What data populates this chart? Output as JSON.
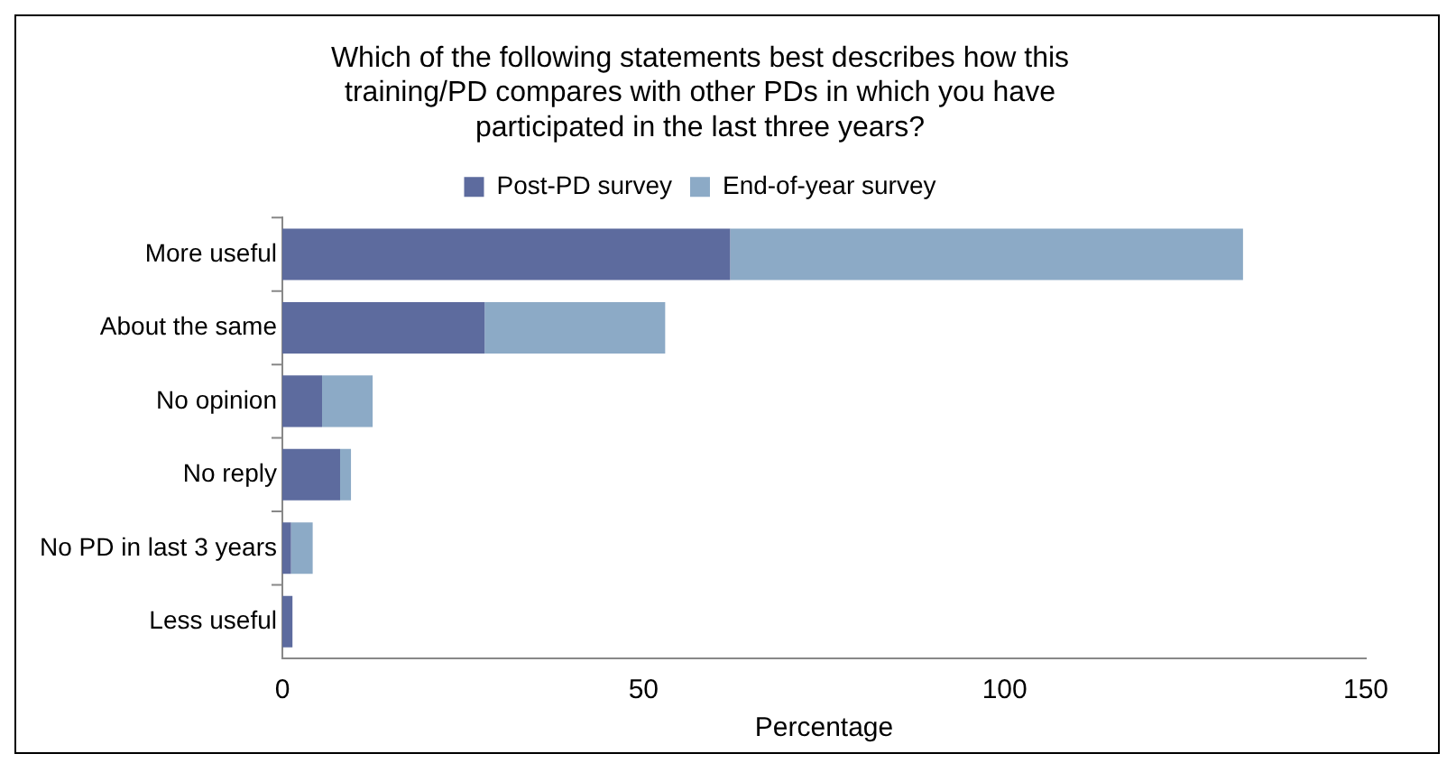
{
  "chart_data": {
    "type": "bar",
    "orientation": "horizontal",
    "stacked": true,
    "title": "Which of the following statements best describes how this training/PD compares with other PDs in which you have participated in the last three years?",
    "xlabel": "Percentage",
    "categories": [
      "More useful",
      "About the same",
      "No opinion",
      "No reply",
      "No PD in last 3 years",
      "Less useful"
    ],
    "series": [
      {
        "name": "Post-PD survey",
        "color": "#5d6b9e",
        "values": [
          62,
          28,
          5.5,
          8,
          1.2,
          1.4
        ]
      },
      {
        "name": "End-of-year survey",
        "color": "#8caac6",
        "values": [
          71,
          25,
          7,
          1.5,
          3,
          0
        ]
      }
    ],
    "xlim": [
      0,
      150
    ],
    "xticks": [
      0,
      50,
      100,
      150
    ],
    "grid": false,
    "legend": "top"
  }
}
